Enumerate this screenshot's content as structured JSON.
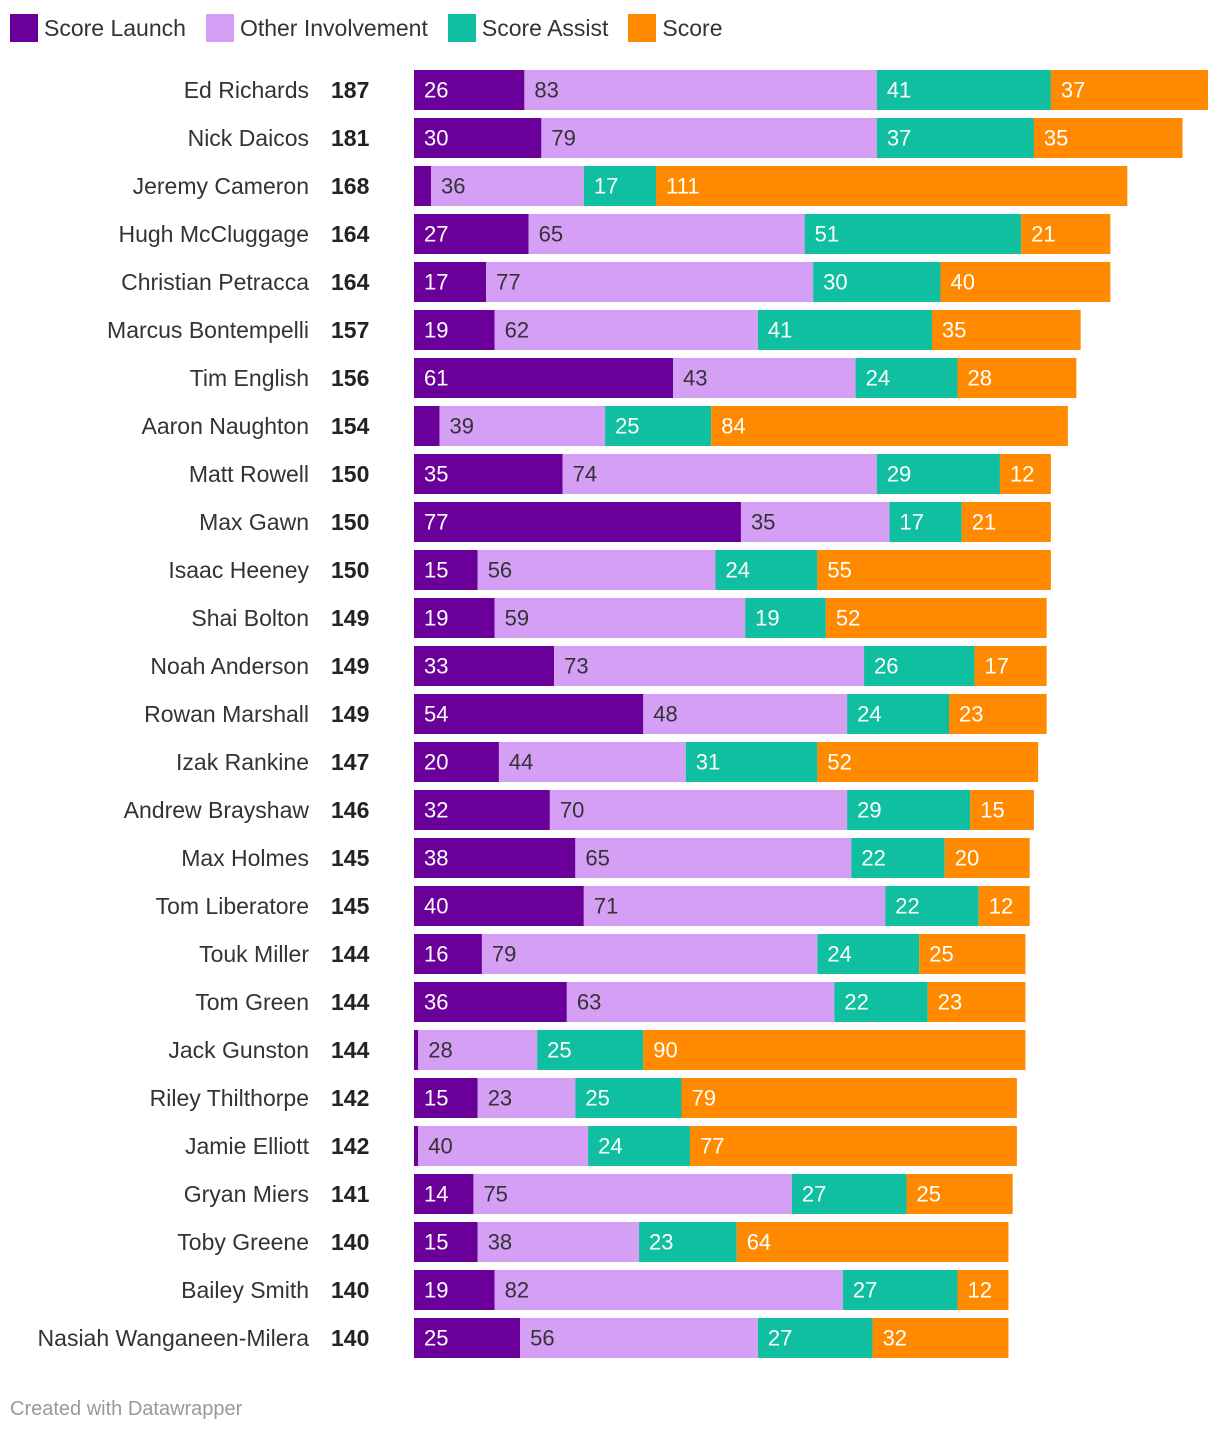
{
  "chart_data": {
    "type": "bar",
    "orientation": "horizontal",
    "stacked": true,
    "title": "",
    "xlabel": "",
    "ylabel": "",
    "xlim": [
      0,
      187
    ],
    "grid": false,
    "legend_position": "top-left",
    "series": [
      {
        "name": "Score Launch",
        "color": "#6a0099"
      },
      {
        "name": "Other Involvement",
        "color": "#d49ff5"
      },
      {
        "name": "Score Assist",
        "color": "#0fbfa0"
      },
      {
        "name": "Score",
        "color": "#ff8a00"
      }
    ],
    "rows": [
      {
        "player": "Ed Richards",
        "total": "187",
        "values": [
          26,
          83,
          41,
          37
        ],
        "labels": [
          "26",
          "83",
          "41",
          "37"
        ]
      },
      {
        "player": "Nick Daicos",
        "total": "181",
        "values": [
          30,
          79,
          37,
          35
        ],
        "labels": [
          "30",
          "79",
          "37",
          "35"
        ]
      },
      {
        "player": "Jeremy Cameron",
        "total": "168",
        "values": [
          4,
          36,
          17,
          111
        ],
        "labels": [
          "",
          "36",
          "17",
          "111"
        ]
      },
      {
        "player": "Hugh McCluggage",
        "total": "164",
        "values": [
          27,
          65,
          51,
          21
        ],
        "labels": [
          "27",
          "65",
          "51",
          "21"
        ]
      },
      {
        "player": "Christian Petracca",
        "total": "164",
        "values": [
          17,
          77,
          30,
          40
        ],
        "labels": [
          "17",
          "77",
          "30",
          "40"
        ]
      },
      {
        "player": "Marcus Bontempelli",
        "total": "157",
        "values": [
          19,
          62,
          41,
          35
        ],
        "labels": [
          "19",
          "62",
          "41",
          "35"
        ]
      },
      {
        "player": "Tim English",
        "total": "156",
        "values": [
          61,
          43,
          24,
          28
        ],
        "labels": [
          "61",
          "43",
          "24",
          "28"
        ]
      },
      {
        "player": "Aaron Naughton",
        "total": "154",
        "values": [
          6,
          39,
          25,
          84
        ],
        "labels": [
          "",
          "39",
          "25",
          "84"
        ]
      },
      {
        "player": "Matt Rowell",
        "total": "150",
        "values": [
          35,
          74,
          29,
          12
        ],
        "labels": [
          "35",
          "74",
          "29",
          "12"
        ]
      },
      {
        "player": "Max Gawn",
        "total": "150",
        "values": [
          77,
          35,
          17,
          21
        ],
        "labels": [
          "77",
          "35",
          "17",
          "21"
        ]
      },
      {
        "player": "Isaac Heeney",
        "total": "150",
        "values": [
          15,
          56,
          24,
          55
        ],
        "labels": [
          "15",
          "56",
          "24",
          "55"
        ]
      },
      {
        "player": "Shai Bolton",
        "total": "149",
        "values": [
          19,
          59,
          19,
          52
        ],
        "labels": [
          "19",
          "59",
          "19",
          "52"
        ]
      },
      {
        "player": "Noah Anderson",
        "total": "149",
        "values": [
          33,
          73,
          26,
          17
        ],
        "labels": [
          "33",
          "73",
          "26",
          "17"
        ]
      },
      {
        "player": "Rowan Marshall",
        "total": "149",
        "values": [
          54,
          48,
          24,
          23
        ],
        "labels": [
          "54",
          "48",
          "24",
          "23"
        ]
      },
      {
        "player": "Izak Rankine",
        "total": "147",
        "values": [
          20,
          44,
          31,
          52
        ],
        "labels": [
          "20",
          "44",
          "31",
          "52"
        ]
      },
      {
        "player": "Andrew Brayshaw",
        "total": "146",
        "values": [
          32,
          70,
          29,
          15
        ],
        "labels": [
          "32",
          "70",
          "29",
          "15"
        ]
      },
      {
        "player": "Max Holmes",
        "total": "145",
        "values": [
          38,
          65,
          22,
          20
        ],
        "labels": [
          "38",
          "65",
          "22",
          "20"
        ]
      },
      {
        "player": "Tom Liberatore",
        "total": "145",
        "values": [
          40,
          71,
          22,
          12
        ],
        "labels": [
          "40",
          "71",
          "22",
          "12"
        ]
      },
      {
        "player": "Touk Miller",
        "total": "144",
        "values": [
          16,
          79,
          24,
          25
        ],
        "labels": [
          "16",
          "79",
          "24",
          "25"
        ]
      },
      {
        "player": "Tom Green",
        "total": "144",
        "values": [
          36,
          63,
          22,
          23
        ],
        "labels": [
          "36",
          "63",
          "22",
          "23"
        ]
      },
      {
        "player": "Jack Gunston",
        "total": "144",
        "values": [
          1,
          28,
          25,
          90
        ],
        "labels": [
          "",
          "28",
          "25",
          "90"
        ]
      },
      {
        "player": "Riley Thilthorpe",
        "total": "142",
        "values": [
          15,
          23,
          25,
          79
        ],
        "labels": [
          "15",
          "23",
          "25",
          "79"
        ]
      },
      {
        "player": "Jamie Elliott",
        "total": "142",
        "values": [
          1,
          40,
          24,
          77
        ],
        "labels": [
          "",
          "40",
          "24",
          "77"
        ]
      },
      {
        "player": "Gryan Miers",
        "total": "141",
        "values": [
          14,
          75,
          27,
          25
        ],
        "labels": [
          "14",
          "75",
          "27",
          "25"
        ]
      },
      {
        "player": "Toby Greene",
        "total": "140",
        "values": [
          15,
          38,
          23,
          64
        ],
        "labels": [
          "15",
          "38",
          "23",
          "64"
        ]
      },
      {
        "player": "Bailey Smith",
        "total": "140",
        "values": [
          19,
          82,
          27,
          12
        ],
        "labels": [
          "19",
          "82",
          "27",
          "12"
        ]
      },
      {
        "player": "Nasiah Wanganeen-Milera",
        "total": "140",
        "values": [
          25,
          56,
          27,
          32
        ],
        "labels": [
          "25",
          "56",
          "27",
          "32"
        ]
      }
    ]
  },
  "footer": {
    "credit": "Created with Datawrapper"
  }
}
